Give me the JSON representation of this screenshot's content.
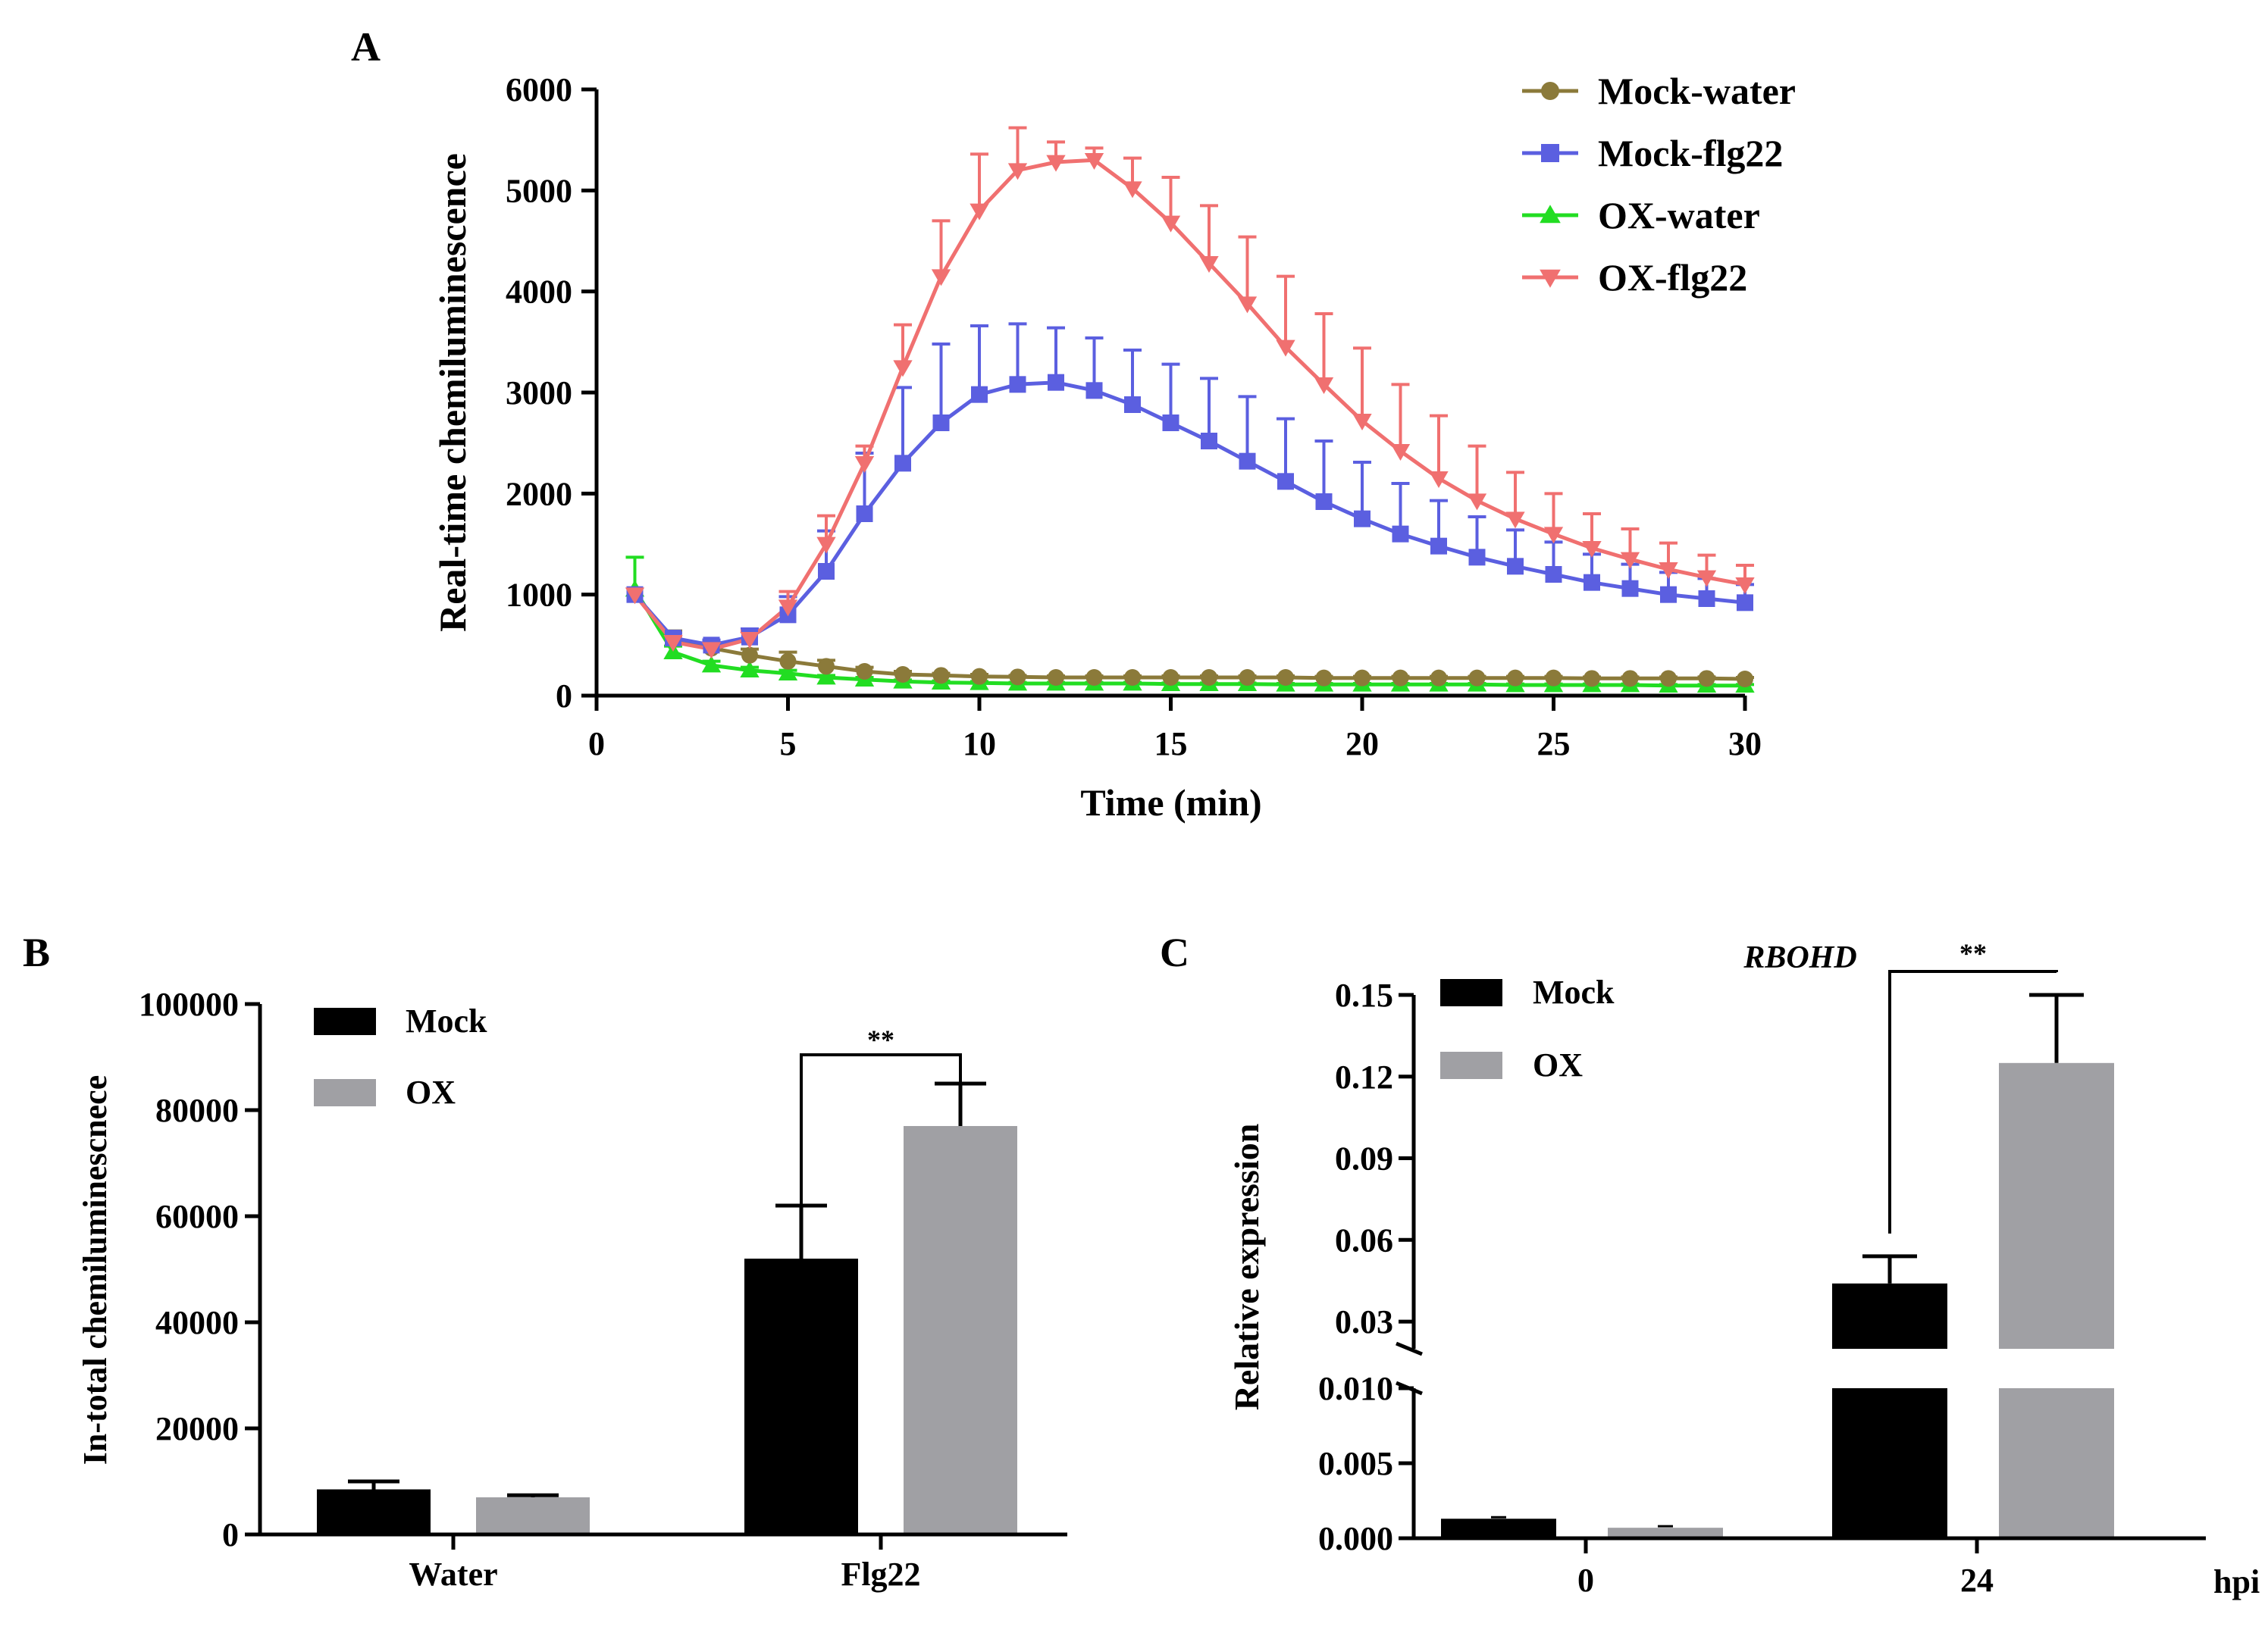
{
  "chart_data": [
    {
      "panel": "A",
      "type": "line",
      "xlabel": "Time (min)",
      "ylabel": "Real-time chemiluminescence",
      "xlim": [
        0,
        30
      ],
      "ylim": [
        0,
        6000
      ],
      "xticks": [
        0,
        5,
        10,
        15,
        20,
        25,
        30
      ],
      "yticks": [
        0,
        1000,
        2000,
        3000,
        4000,
        5000,
        6000
      ],
      "legend_position": "top-right",
      "x": [
        1,
        2,
        3,
        4,
        5,
        6,
        7,
        8,
        9,
        10,
        11,
        12,
        13,
        14,
        15,
        16,
        17,
        18,
        19,
        20,
        21,
        22,
        23,
        24,
        25,
        26,
        27,
        28,
        29,
        30
      ],
      "series": [
        {
          "name": "Mock-water",
          "color": "#8b7a3a",
          "marker": "circle",
          "values": [
            1000,
            560,
            470,
            400,
            340,
            290,
            240,
            210,
            200,
            190,
            185,
            180,
            180,
            180,
            180,
            180,
            180,
            180,
            175,
            175,
            175,
            175,
            175,
            175,
            175,
            170,
            170,
            170,
            170,
            165
          ],
          "errors": [
            0,
            80,
            70,
            60,
            90,
            60,
            40,
            30,
            20,
            20,
            15,
            15,
            15,
            15,
            15,
            15,
            15,
            15,
            15,
            15,
            15,
            15,
            15,
            15,
            15,
            15,
            15,
            15,
            15,
            15
          ]
        },
        {
          "name": "Mock-flg22",
          "color": "#5b5fe0",
          "marker": "square",
          "values": [
            1000,
            570,
            500,
            580,
            800,
            1230,
            1800,
            2300,
            2700,
            2980,
            3080,
            3100,
            3020,
            2880,
            2700,
            2520,
            2320,
            2120,
            1920,
            1750,
            1600,
            1480,
            1370,
            1280,
            1200,
            1120,
            1060,
            1000,
            960,
            920
          ],
          "errors": [
            0,
            50,
            50,
            80,
            180,
            400,
            600,
            750,
            780,
            680,
            600,
            540,
            520,
            540,
            580,
            620,
            640,
            620,
            600,
            560,
            500,
            450,
            400,
            360,
            320,
            280,
            240,
            220,
            200,
            180
          ]
        },
        {
          "name": "OX-water",
          "color": "#22dd22",
          "marker": "triangle-up",
          "values": [
            1050,
            430,
            300,
            250,
            220,
            180,
            160,
            140,
            130,
            125,
            120,
            120,
            120,
            120,
            115,
            115,
            115,
            110,
            110,
            110,
            110,
            110,
            110,
            105,
            105,
            105,
            105,
            100,
            100,
            100
          ],
          "errors": [
            320,
            60,
            40,
            30,
            30,
            20,
            20,
            15,
            15,
            15,
            10,
            10,
            10,
            10,
            10,
            10,
            10,
            10,
            10,
            10,
            10,
            10,
            10,
            10,
            10,
            10,
            10,
            10,
            10,
            10
          ]
        },
        {
          "name": "OX-flg22",
          "color": "#f07070",
          "marker": "triangle-down",
          "values": [
            1000,
            530,
            460,
            560,
            880,
            1500,
            2300,
            3250,
            4150,
            4800,
            5200,
            5280,
            5300,
            5020,
            4680,
            4280,
            3880,
            3450,
            3080,
            2720,
            2420,
            2150,
            1930,
            1750,
            1600,
            1460,
            1350,
            1250,
            1170,
            1100
          ],
          "errors": [
            0,
            60,
            60,
            80,
            150,
            280,
            170,
            420,
            550,
            560,
            420,
            200,
            120,
            300,
            450,
            570,
            660,
            700,
            700,
            720,
            660,
            620,
            540,
            460,
            400,
            340,
            300,
            260,
            220,
            190
          ]
        }
      ]
    },
    {
      "panel": "B",
      "type": "bar",
      "ylabel": "In-total chemiluminescnece",
      "ylim": [
        0,
        100000
      ],
      "yticks": [
        "0",
        "20000",
        "40000",
        "60000",
        "80000",
        "100000"
      ],
      "categories": [
        "Water",
        "Flg22"
      ],
      "legend_position": "top-left",
      "series": [
        {
          "name": "Mock",
          "color": "#000000",
          "values": [
            8500,
            52000
          ],
          "errors": [
            1500,
            10000
          ]
        },
        {
          "name": "OX",
          "color": "#a0a0a4",
          "values": [
            7000,
            77000
          ],
          "errors": [
            400,
            8000
          ]
        }
      ],
      "annotations": [
        {
          "text": "**",
          "category": "Flg22"
        }
      ]
    },
    {
      "panel": "C",
      "type": "bar",
      "title": "RBOHD",
      "ylabel": "Relative expression",
      "xlabel": "hpi",
      "y_axis_break": [
        0.01,
        0.02
      ],
      "yticks_lower": [
        "0.000",
        "0.005",
        "0.010"
      ],
      "yticks_upper": [
        "0.03",
        "0.06",
        "0.09",
        "0.12",
        "0.15"
      ],
      "categories": [
        "0",
        "24"
      ],
      "legend_position": "top-left",
      "series": [
        {
          "name": "Mock",
          "color": "#000000",
          "values": [
            0.0013,
            0.044
          ],
          "errors": [
            0.0001,
            0.01
          ]
        },
        {
          "name": "OX",
          "color": "#a0a0a4",
          "values": [
            0.0007,
            0.125
          ],
          "errors": [
            0.0001,
            0.025
          ]
        }
      ],
      "annotations": [
        {
          "text": "**",
          "category": "24"
        }
      ]
    }
  ]
}
